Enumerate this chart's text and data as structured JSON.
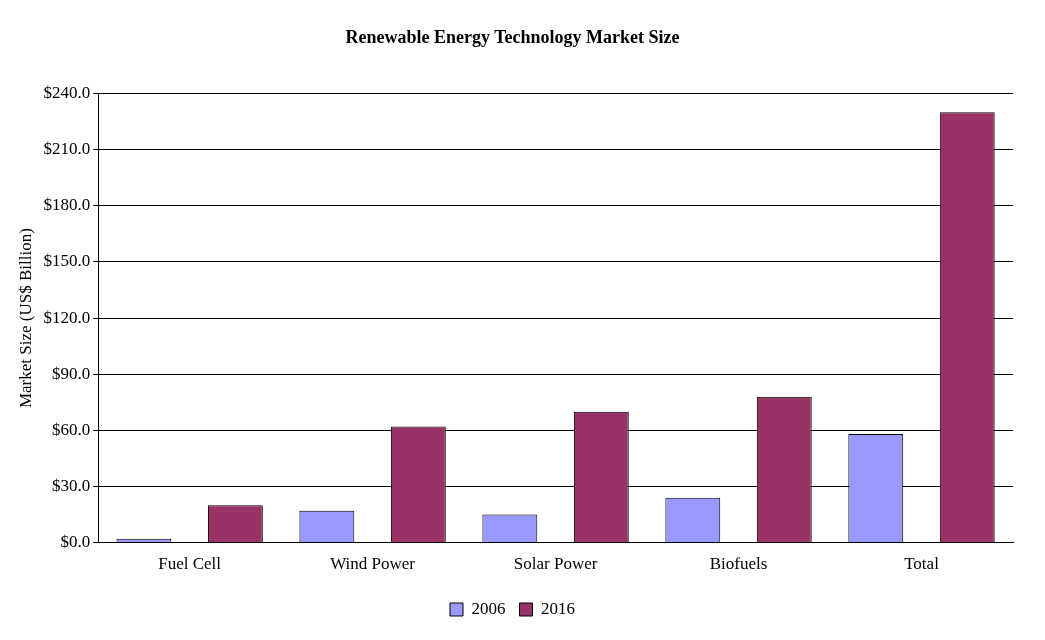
{
  "chart_data": {
    "type": "bar",
    "title": "Renewable Energy Technology Market Size",
    "ylabel": "Market Size (US$ Billion)",
    "categories": [
      "Fuel Cell",
      "Wind Power",
      "Solar Power",
      "Biofuels",
      "Total"
    ],
    "series": [
      {
        "name": "2006",
        "color": "#9999ff",
        "values": [
          2,
          17,
          15,
          24,
          58
        ]
      },
      {
        "name": "2016",
        "color": "#993366",
        "values": [
          20,
          62,
          70,
          78,
          230
        ]
      }
    ],
    "ylim": [
      0,
      240
    ],
    "yticks": [
      {
        "value": 0,
        "label": "$0.0"
      },
      {
        "value": 30,
        "label": "$30.0"
      },
      {
        "value": 60,
        "label": "$60.0"
      },
      {
        "value": 90,
        "label": "$90.0"
      },
      {
        "value": 120,
        "label": "$120.0"
      },
      {
        "value": 150,
        "label": "$150.0"
      },
      {
        "value": 180,
        "label": "$180.0"
      },
      {
        "value": 210,
        "label": "$210.0"
      },
      {
        "value": 240,
        "label": "$240.0"
      }
    ],
    "grid": "y",
    "legend": "bottom"
  }
}
